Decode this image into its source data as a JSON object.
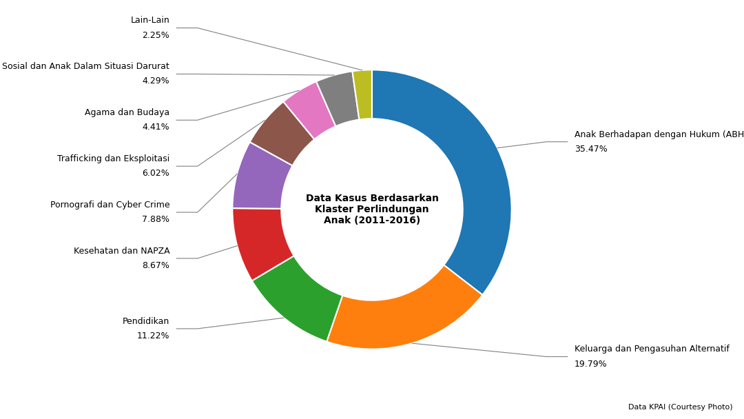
{
  "chart_data": {
    "type": "donut",
    "title": "Data Kasus Berdasarkan\nKlaster Perlindungan\nAnak (2011-2016)",
    "categories": [
      "Anak Berhadapan dengan Hukum (ABH)",
      "Keluarga dan Pengasuhan Alternatif",
      "Pendidikan",
      "Kesehatan dan NAPZA",
      "Pornografi dan Cyber Crime",
      "Trafficking dan Eksploitasi",
      "Agama dan Budaya",
      "Sosial dan Anak Dalam Situasi Darurat",
      "Lain-Lain"
    ],
    "values": [
      35.47,
      19.79,
      11.22,
      8.67,
      7.88,
      6.02,
      4.41,
      4.29,
      2.25
    ],
    "value_labels": [
      "35.47%",
      "19.79%",
      "11.22%",
      "8.67%",
      "7.88%",
      "6.02%",
      "4.41%",
      "4.29%",
      "2.25%"
    ],
    "data_labels": true,
    "annotations": [
      "Data KPAI (Courtesy Photo)"
    ]
  }
}
